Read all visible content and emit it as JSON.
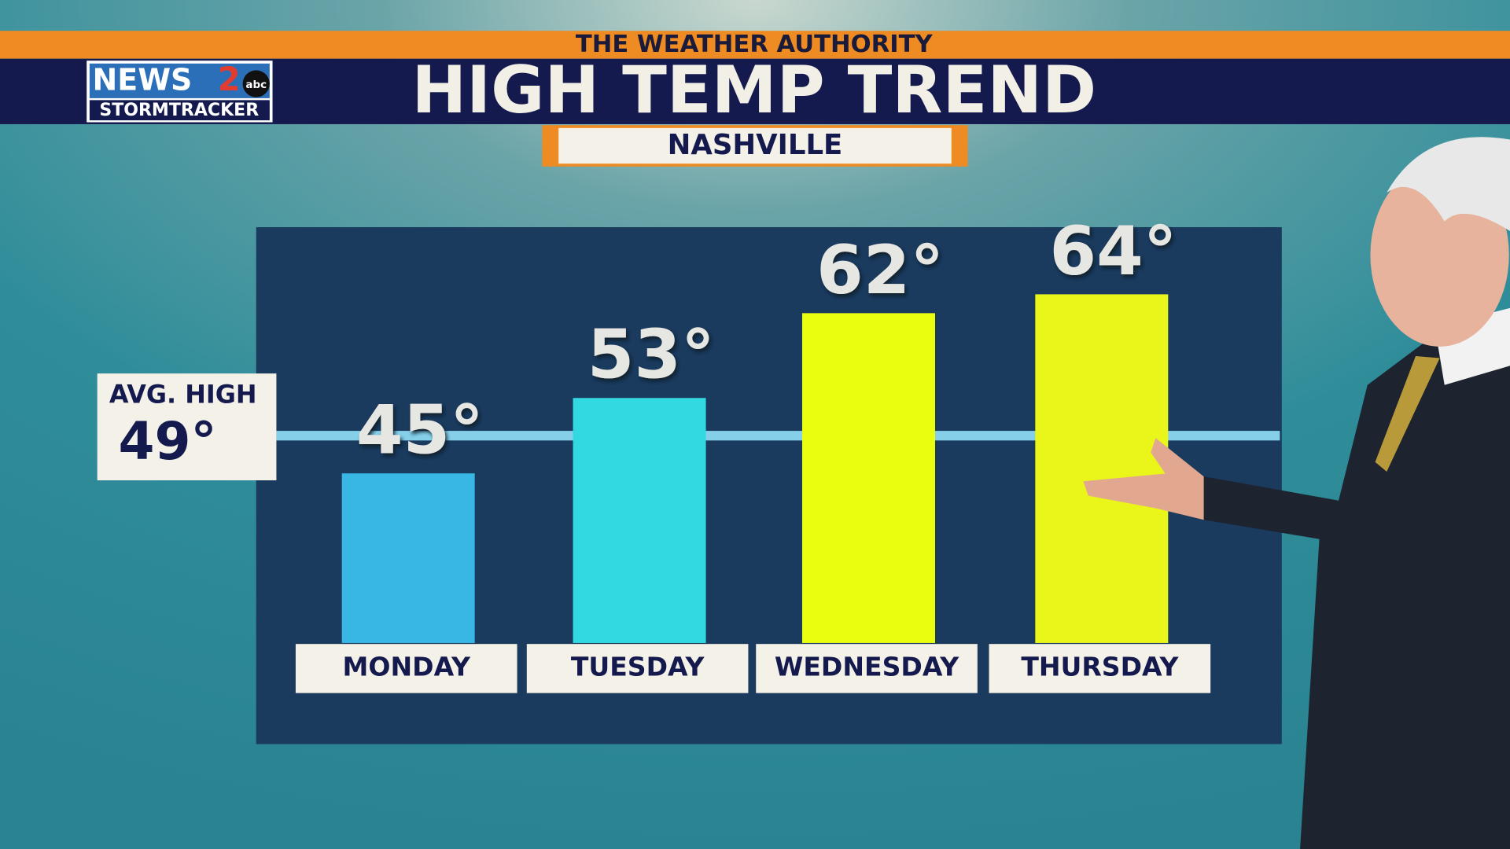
{
  "chart_data": {
    "type": "bar",
    "banner": "THE WEATHER AUTHORITY",
    "logo": {
      "news": "NEWS",
      "number": "2",
      "network": "abc",
      "brand": "STORMTRACKER"
    },
    "title": "HIGH TEMP TREND",
    "subtitle": "NASHVILLE",
    "categories": [
      "MONDAY",
      "TUESDAY",
      "WEDNESDAY",
      "THURSDAY"
    ],
    "values": [
      45,
      53,
      62,
      64
    ],
    "value_labels": [
      "45°",
      "53°",
      "62°",
      "64°"
    ],
    "colors": [
      "#38b6e4",
      "#33d9e0",
      "#eaff10",
      "#eaf51a"
    ],
    "ylim": [
      27,
      70
    ],
    "reference_line": {
      "label": "AVG. HIGH",
      "value": 49,
      "value_label": "49°",
      "color": "#86cfe9"
    }
  }
}
